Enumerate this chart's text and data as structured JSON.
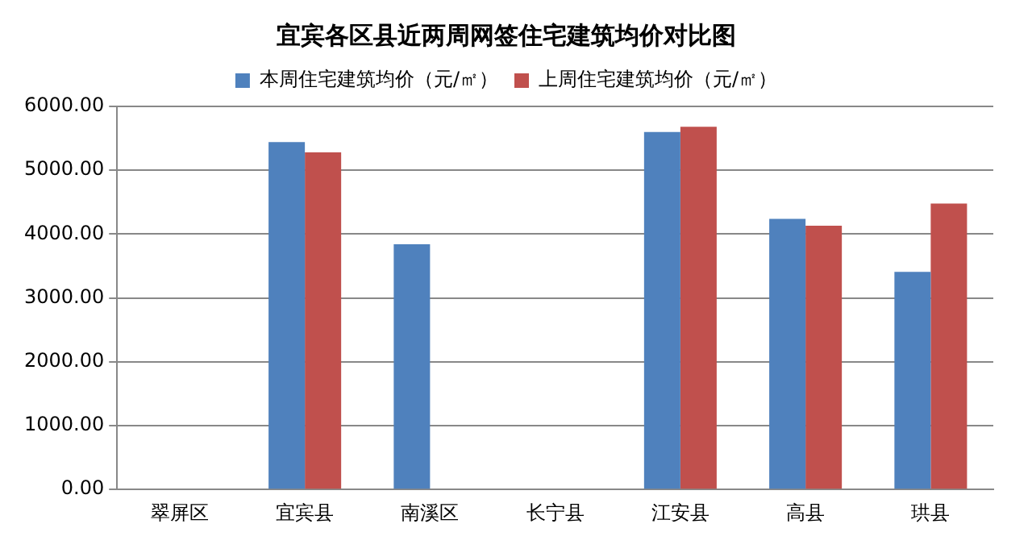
{
  "chart_data": {
    "type": "bar",
    "title": "宜宾各区县近两周网签住宅建筑均价对比图",
    "categories": [
      "翠屏区",
      "宜宾县",
      "南溪区",
      "长宁县",
      "江安县",
      "高县",
      "珙县"
    ],
    "series": [
      {
        "name": "本周住宅建筑均价（元/㎡）",
        "color": "#4f81bd",
        "values": [
          null,
          5440,
          3840,
          null,
          5600,
          4240,
          3410
        ]
      },
      {
        "name": "上周住宅建筑均价（元/㎡）",
        "color": "#c0504d",
        "values": [
          null,
          5280,
          null,
          null,
          5680,
          4130,
          4480
        ]
      }
    ],
    "ylim": [
      0,
      6000
    ],
    "yticks": [
      {
        "value": 0,
        "label": "0.00"
      },
      {
        "value": 1000,
        "label": "1000.00"
      },
      {
        "value": 2000,
        "label": "2000.00"
      },
      {
        "value": 3000,
        "label": "3000.00"
      },
      {
        "value": 4000,
        "label": "4000.00"
      },
      {
        "value": 5000,
        "label": "5000.00"
      },
      {
        "value": 6000,
        "label": "6000.00"
      }
    ],
    "grid": "y",
    "legend": "top"
  }
}
